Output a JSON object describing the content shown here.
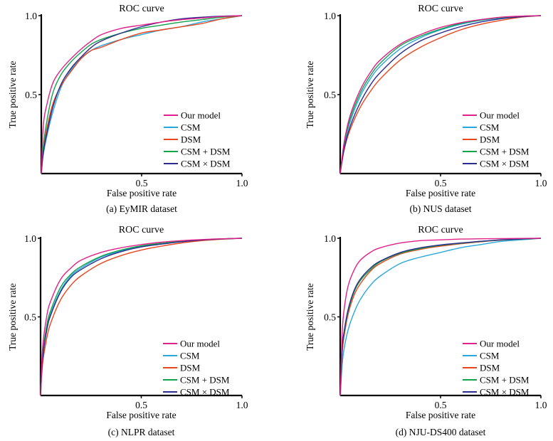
{
  "colors": {
    "Our model": "#e0218a",
    "CSM": "#2aa7dc",
    "DSM": "#e8461c",
    "CSM + DSM": "#13a14a",
    "CSM × DSM": "#2b2c8c"
  },
  "chart_data": [
    {
      "type": "line",
      "title": "ROC curve",
      "xlabel": "False positive rate",
      "ylabel": "True positive rate",
      "caption": "(a) EyMIR dataset",
      "xlim": [
        0,
        1
      ],
      "ylim": [
        0,
        1
      ],
      "xticks": [
        "0.5",
        "1.0"
      ],
      "yticks": [
        "0.5",
        "1.0"
      ],
      "legend_position": "lower-right",
      "series": [
        {
          "name": "Our model",
          "x": [
            0,
            0.01,
            0.03,
            0.06,
            0.1,
            0.15,
            0.2,
            0.25,
            0.3,
            0.4,
            0.5,
            0.6,
            0.7,
            0.8,
            0.9,
            1.0
          ],
          "y": [
            0,
            0.3,
            0.45,
            0.58,
            0.66,
            0.73,
            0.79,
            0.84,
            0.88,
            0.92,
            0.94,
            0.96,
            0.975,
            0.985,
            0.995,
            1.0
          ]
        },
        {
          "name": "CSM",
          "x": [
            0,
            0.01,
            0.03,
            0.06,
            0.1,
            0.15,
            0.2,
            0.25,
            0.3,
            0.4,
            0.5,
            0.6,
            0.7,
            0.8,
            0.9,
            1.0
          ],
          "y": [
            0,
            0.12,
            0.25,
            0.4,
            0.55,
            0.66,
            0.73,
            0.78,
            0.81,
            0.85,
            0.88,
            0.91,
            0.93,
            0.96,
            0.98,
            1.0
          ]
        },
        {
          "name": "DSM",
          "x": [
            0,
            0.01,
            0.03,
            0.06,
            0.1,
            0.15,
            0.2,
            0.25,
            0.3,
            0.4,
            0.5,
            0.6,
            0.7,
            0.8,
            0.9,
            1.0
          ],
          "y": [
            0,
            0.15,
            0.3,
            0.45,
            0.56,
            0.65,
            0.73,
            0.78,
            0.8,
            0.85,
            0.89,
            0.91,
            0.93,
            0.95,
            0.98,
            1.0
          ]
        },
        {
          "name": "CSM + DSM",
          "x": [
            0,
            0.01,
            0.03,
            0.06,
            0.1,
            0.15,
            0.2,
            0.25,
            0.3,
            0.4,
            0.5,
            0.6,
            0.7,
            0.8,
            0.9,
            1.0
          ],
          "y": [
            0,
            0.17,
            0.35,
            0.52,
            0.63,
            0.71,
            0.77,
            0.82,
            0.85,
            0.89,
            0.92,
            0.94,
            0.96,
            0.975,
            0.99,
            1.0
          ]
        },
        {
          "name": "CSM × DSM",
          "x": [
            0,
            0.01,
            0.03,
            0.06,
            0.1,
            0.15,
            0.2,
            0.25,
            0.3,
            0.4,
            0.5,
            0.6,
            0.7,
            0.8,
            0.9,
            1.0
          ],
          "y": [
            0,
            0.13,
            0.27,
            0.43,
            0.57,
            0.67,
            0.74,
            0.8,
            0.84,
            0.89,
            0.93,
            0.96,
            0.98,
            0.99,
            0.997,
            1.0
          ]
        }
      ]
    },
    {
      "type": "line",
      "title": "ROC curve",
      "xlabel": "False positive rate",
      "ylabel": "True positive rate",
      "caption": "(b) NUS dataset",
      "xlim": [
        0,
        1
      ],
      "ylim": [
        0,
        1
      ],
      "xticks": [
        "0.5",
        "1.0"
      ],
      "yticks": [
        "0.5",
        "1.0"
      ],
      "legend_position": "lower-right",
      "series": [
        {
          "name": "Our model",
          "x": [
            0,
            0.02,
            0.05,
            0.1,
            0.15,
            0.2,
            0.3,
            0.4,
            0.5,
            0.6,
            0.7,
            0.8,
            0.9,
            1.0
          ],
          "y": [
            0,
            0.2,
            0.37,
            0.53,
            0.64,
            0.72,
            0.82,
            0.88,
            0.925,
            0.955,
            0.975,
            0.99,
            0.997,
            1.0
          ]
        },
        {
          "name": "CSM",
          "x": [
            0,
            0.02,
            0.05,
            0.1,
            0.15,
            0.2,
            0.3,
            0.4,
            0.5,
            0.6,
            0.7,
            0.8,
            0.9,
            1.0
          ],
          "y": [
            0,
            0.18,
            0.33,
            0.49,
            0.6,
            0.68,
            0.79,
            0.86,
            0.91,
            0.945,
            0.97,
            0.985,
            0.995,
            1.0
          ]
        },
        {
          "name": "DSM",
          "x": [
            0,
            0.02,
            0.05,
            0.1,
            0.15,
            0.2,
            0.3,
            0.4,
            0.5,
            0.6,
            0.7,
            0.8,
            0.9,
            1.0
          ],
          "y": [
            0,
            0.15,
            0.28,
            0.42,
            0.52,
            0.6,
            0.72,
            0.8,
            0.86,
            0.91,
            0.945,
            0.97,
            0.99,
            1.0
          ]
        },
        {
          "name": "CSM + DSM",
          "x": [
            0,
            0.02,
            0.05,
            0.1,
            0.15,
            0.2,
            0.3,
            0.4,
            0.5,
            0.6,
            0.7,
            0.8,
            0.9,
            1.0
          ],
          "y": [
            0,
            0.19,
            0.35,
            0.51,
            0.62,
            0.7,
            0.81,
            0.87,
            0.915,
            0.95,
            0.972,
            0.988,
            0.996,
            1.0
          ]
        },
        {
          "name": "CSM × DSM",
          "x": [
            0,
            0.02,
            0.05,
            0.1,
            0.15,
            0.2,
            0.3,
            0.4,
            0.5,
            0.6,
            0.7,
            0.8,
            0.9,
            1.0
          ],
          "y": [
            0,
            0.16,
            0.3,
            0.45,
            0.56,
            0.64,
            0.76,
            0.84,
            0.89,
            0.93,
            0.96,
            0.98,
            0.993,
            1.0
          ]
        }
      ]
    },
    {
      "type": "line",
      "title": "ROC curve",
      "xlabel": "False positive rate",
      "ylabel": "True positive rate",
      "caption": "(c) NLPR dataset",
      "xlim": [
        0,
        1
      ],
      "ylim": [
        0,
        1
      ],
      "xticks": [
        "0.5",
        "1.0"
      ],
      "yticks": [
        "0.5",
        "1.0"
      ],
      "legend_position": "lower-right",
      "series": [
        {
          "name": "Our model",
          "x": [
            0,
            0.01,
            0.03,
            0.05,
            0.1,
            0.15,
            0.2,
            0.3,
            0.4,
            0.5,
            0.6,
            0.7,
            0.8,
            0.9,
            1.0
          ],
          "y": [
            0,
            0.3,
            0.5,
            0.6,
            0.74,
            0.81,
            0.86,
            0.91,
            0.94,
            0.96,
            0.975,
            0.985,
            0.992,
            0.997,
            1.0
          ]
        },
        {
          "name": "CSM",
          "x": [
            0,
            0.01,
            0.03,
            0.05,
            0.1,
            0.15,
            0.2,
            0.3,
            0.4,
            0.5,
            0.6,
            0.7,
            0.8,
            0.9,
            1.0
          ],
          "y": [
            0,
            0.24,
            0.42,
            0.52,
            0.67,
            0.76,
            0.81,
            0.88,
            0.92,
            0.95,
            0.965,
            0.98,
            0.99,
            0.996,
            1.0
          ]
        },
        {
          "name": "DSM",
          "x": [
            0,
            0.01,
            0.03,
            0.05,
            0.1,
            0.15,
            0.2,
            0.3,
            0.4,
            0.5,
            0.6,
            0.7,
            0.8,
            0.9,
            1.0
          ],
          "y": [
            0,
            0.2,
            0.36,
            0.46,
            0.61,
            0.7,
            0.76,
            0.84,
            0.89,
            0.925,
            0.95,
            0.97,
            0.985,
            0.994,
            1.0
          ]
        },
        {
          "name": "CSM + DSM",
          "x": [
            0,
            0.01,
            0.03,
            0.05,
            0.1,
            0.15,
            0.2,
            0.3,
            0.4,
            0.5,
            0.6,
            0.7,
            0.8,
            0.9,
            1.0
          ],
          "y": [
            0,
            0.25,
            0.44,
            0.54,
            0.69,
            0.77,
            0.82,
            0.885,
            0.925,
            0.952,
            0.968,
            0.981,
            0.99,
            0.996,
            1.0
          ]
        },
        {
          "name": "CSM × DSM",
          "x": [
            0,
            0.01,
            0.03,
            0.05,
            0.1,
            0.15,
            0.2,
            0.3,
            0.4,
            0.5,
            0.6,
            0.7,
            0.8,
            0.9,
            1.0
          ],
          "y": [
            0,
            0.23,
            0.41,
            0.51,
            0.66,
            0.75,
            0.8,
            0.87,
            0.915,
            0.945,
            0.963,
            0.978,
            0.989,
            0.996,
            1.0
          ]
        }
      ]
    },
    {
      "type": "line",
      "title": "ROC curve",
      "xlabel": "False positive rate",
      "ylabel": "True positive rate",
      "caption": "(d) NJU-DS400 dataset",
      "xlim": [
        0,
        1
      ],
      "ylim": [
        0,
        1
      ],
      "xticks": [
        "0.5",
        "1.0"
      ],
      "yticks": [
        "0.5",
        "1.0"
      ],
      "legend_position": "lower-right",
      "series": [
        {
          "name": "Our model",
          "x": [
            0,
            0.01,
            0.02,
            0.04,
            0.07,
            0.1,
            0.15,
            0.2,
            0.3,
            0.4,
            0.5,
            0.6,
            0.7,
            0.8,
            0.9,
            1.0
          ],
          "y": [
            0,
            0.4,
            0.55,
            0.7,
            0.8,
            0.86,
            0.91,
            0.94,
            0.97,
            0.985,
            0.99,
            0.995,
            0.997,
            0.998,
            0.999,
            1.0
          ]
        },
        {
          "name": "CSM",
          "x": [
            0,
            0.01,
            0.02,
            0.04,
            0.07,
            0.1,
            0.15,
            0.2,
            0.3,
            0.4,
            0.5,
            0.6,
            0.7,
            0.8,
            0.9,
            1.0
          ],
          "y": [
            0,
            0.2,
            0.3,
            0.42,
            0.53,
            0.61,
            0.7,
            0.76,
            0.84,
            0.88,
            0.91,
            0.94,
            0.96,
            0.98,
            0.99,
            1.0
          ]
        },
        {
          "name": "DSM",
          "x": [
            0,
            0.01,
            0.02,
            0.04,
            0.07,
            0.1,
            0.15,
            0.2,
            0.3,
            0.4,
            0.5,
            0.6,
            0.7,
            0.8,
            0.9,
            1.0
          ],
          "y": [
            0,
            0.27,
            0.38,
            0.52,
            0.64,
            0.71,
            0.79,
            0.84,
            0.9,
            0.93,
            0.95,
            0.965,
            0.978,
            0.988,
            0.995,
            1.0
          ]
        },
        {
          "name": "CSM + DSM",
          "x": [
            0,
            0.01,
            0.02,
            0.04,
            0.07,
            0.1,
            0.15,
            0.2,
            0.3,
            0.4,
            0.5,
            0.6,
            0.7,
            0.8,
            0.9,
            1.0
          ],
          "y": [
            0,
            0.29,
            0.4,
            0.54,
            0.66,
            0.73,
            0.8,
            0.85,
            0.905,
            0.935,
            0.955,
            0.968,
            0.98,
            0.989,
            0.995,
            1.0
          ]
        },
        {
          "name": "CSM × DSM",
          "x": [
            0,
            0.01,
            0.02,
            0.04,
            0.07,
            0.1,
            0.15,
            0.2,
            0.3,
            0.4,
            0.5,
            0.6,
            0.7,
            0.8,
            0.9,
            1.0
          ],
          "y": [
            0,
            0.3,
            0.41,
            0.55,
            0.67,
            0.74,
            0.81,
            0.855,
            0.91,
            0.94,
            0.958,
            0.97,
            0.981,
            0.99,
            0.996,
            1.0
          ]
        }
      ]
    }
  ]
}
